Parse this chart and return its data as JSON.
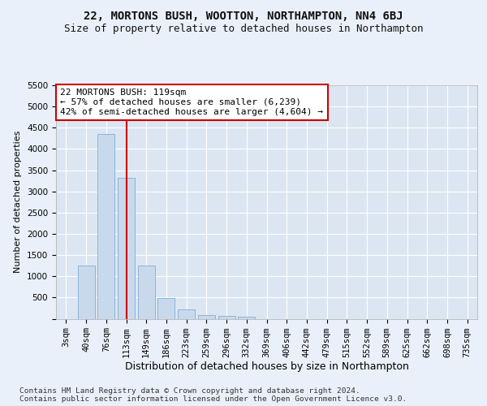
{
  "title1": "22, MORTONS BUSH, WOOTTON, NORTHAMPTON, NN4 6BJ",
  "title2": "Size of property relative to detached houses in Northampton",
  "xlabel": "Distribution of detached houses by size in Northampton",
  "ylabel": "Number of detached properties",
  "footer1": "Contains HM Land Registry data © Crown copyright and database right 2024.",
  "footer2": "Contains public sector information licensed under the Open Government Licence v3.0.",
  "bar_labels": [
    "3sqm",
    "40sqm",
    "76sqm",
    "113sqm",
    "149sqm",
    "186sqm",
    "223sqm",
    "259sqm",
    "296sqm",
    "332sqm",
    "369sqm",
    "406sqm",
    "442sqm",
    "479sqm",
    "515sqm",
    "552sqm",
    "589sqm",
    "625sqm",
    "662sqm",
    "698sqm",
    "735sqm"
  ],
  "bar_values": [
    0,
    1260,
    4350,
    3310,
    1260,
    490,
    220,
    95,
    65,
    55,
    0,
    0,
    0,
    0,
    0,
    0,
    0,
    0,
    0,
    0,
    0
  ],
  "bar_color": "#c9d9ec",
  "bar_edge_color": "#7eadd4",
  "vline_x": 3,
  "vline_color": "#cc0000",
  "annotation_line1": "22 MORTONS BUSH: 119sqm",
  "annotation_line2": "← 57% of detached houses are smaller (6,239)",
  "annotation_line3": "42% of semi-detached houses are larger (4,604) →",
  "annotation_box_color": "#ffffff",
  "annotation_box_edge_color": "#cc0000",
  "ylim": [
    0,
    5500
  ],
  "yticks": [
    0,
    500,
    1000,
    1500,
    2000,
    2500,
    3000,
    3500,
    4000,
    4500,
    5000,
    5500
  ],
  "bg_color": "#eaf0f9",
  "plot_bg_color": "#dce6f2",
  "grid_color": "#ffffff",
  "title1_fontsize": 10,
  "title2_fontsize": 9,
  "xlabel_fontsize": 9,
  "ylabel_fontsize": 8,
  "tick_fontsize": 7.5,
  "annotation_fontsize": 8,
  "footer_fontsize": 6.8
}
